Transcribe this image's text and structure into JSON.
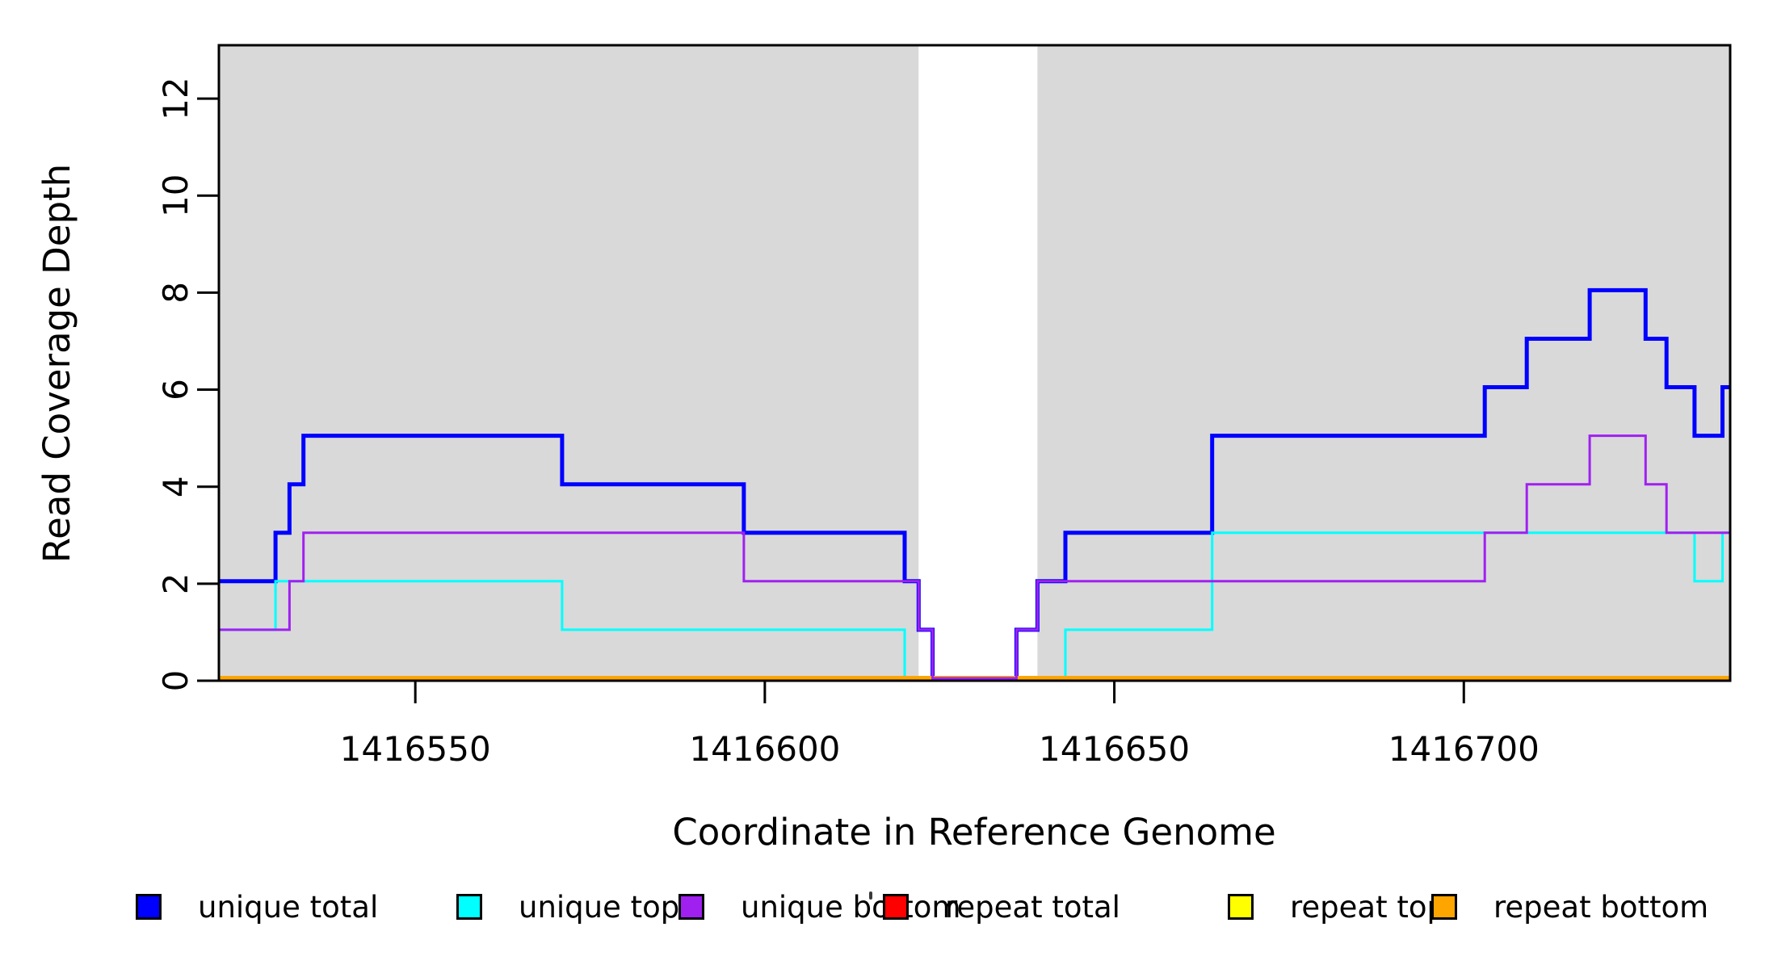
{
  "chart_data": {
    "type": "line",
    "subtype": "step-coverage-plot",
    "title": "",
    "xlabel": "Coordinate in Reference Genome",
    "ylabel": "Read Coverage Depth",
    "xlim": [
      1416521.9,
      1416738.1
    ],
    "ylim": [
      0,
      13.1
    ],
    "grid": false,
    "x_ticks": [
      1416550,
      1416600,
      1416650,
      1416700
    ],
    "y_ticks": [
      0,
      2,
      4,
      6,
      8,
      10,
      12
    ],
    "panel_shading_note": "gray rectangles mark covered reference segments; white gap = uncovered region",
    "shaded_regions": [
      {
        "x0": 1416521.9,
        "x1": 1416622,
        "color": "#d9d9d9"
      },
      {
        "x0": 1416639,
        "x1": 1416738.1,
        "color": "#d9d9d9"
      }
    ],
    "series": [
      {
        "key": "unique-total",
        "name": "unique total",
        "color": "#0000ff",
        "lwd": 5,
        "start": 2,
        "steps": [
          [
            1416530,
            3
          ],
          [
            1416532,
            4
          ],
          [
            1416534,
            5
          ],
          [
            1416571,
            4
          ],
          [
            1416597,
            3
          ],
          [
            1416620,
            2
          ],
          [
            1416622,
            1
          ],
          [
            1416624,
            0
          ],
          [
            1416636,
            1
          ],
          [
            1416639,
            2
          ],
          [
            1416643,
            3
          ],
          [
            1416664,
            5
          ],
          [
            1416703,
            6
          ],
          [
            1416709,
            7
          ],
          [
            1416718,
            8
          ],
          [
            1416726,
            7
          ],
          [
            1416729,
            6
          ],
          [
            1416733,
            5
          ],
          [
            1416737,
            6
          ]
        ]
      },
      {
        "key": "unique-top",
        "name": "unique top",
        "color": "#00ffff",
        "lwd": 3,
        "start": 1,
        "steps": [
          [
            1416530,
            2
          ],
          [
            1416571,
            1
          ],
          [
            1416620,
            0
          ],
          [
            1416643,
            1
          ],
          [
            1416664,
            3
          ],
          [
            1416733,
            2
          ],
          [
            1416737,
            3
          ]
        ]
      },
      {
        "key": "repeat-total",
        "name": "repeat total",
        "color": "#ff0000",
        "lwd": 3,
        "start": 0,
        "steps": []
      },
      {
        "key": "repeat-top",
        "name": "repeat top",
        "color": "#ffff00",
        "lwd": 3,
        "start": 0,
        "steps": []
      },
      {
        "key": "repeat-bottom",
        "name": "repeat bottom",
        "color": "#ffa500",
        "lwd": 6,
        "start": 0,
        "steps": []
      },
      {
        "key": "unique-bottom",
        "name": "unique bottom",
        "color": "#a020f0",
        "lwd": 3,
        "start": 1,
        "steps": [
          [
            1416532,
            2
          ],
          [
            1416534,
            3
          ],
          [
            1416597,
            2
          ],
          [
            1416622,
            1
          ],
          [
            1416624,
            0
          ],
          [
            1416636,
            1
          ],
          [
            1416639,
            2
          ],
          [
            1416703,
            3
          ],
          [
            1416709,
            4
          ],
          [
            1416718,
            5
          ],
          [
            1416726,
            4
          ],
          [
            1416729,
            3
          ]
        ]
      }
    ],
    "legend_position": "bottom-horizontal",
    "legend": [
      {
        "label": "unique total",
        "color": "#0000ff"
      },
      {
        "label": "unique top",
        "color": "#00ffff"
      },
      {
        "label": "unique bottom",
        "color": "#a020f0"
      },
      {
        "label": "repeat total",
        "color": "#ff0000"
      },
      {
        "label": "repeat top",
        "color": "#ffff00"
      },
      {
        "label": "repeat bottom",
        "color": "#ffa500"
      }
    ]
  }
}
